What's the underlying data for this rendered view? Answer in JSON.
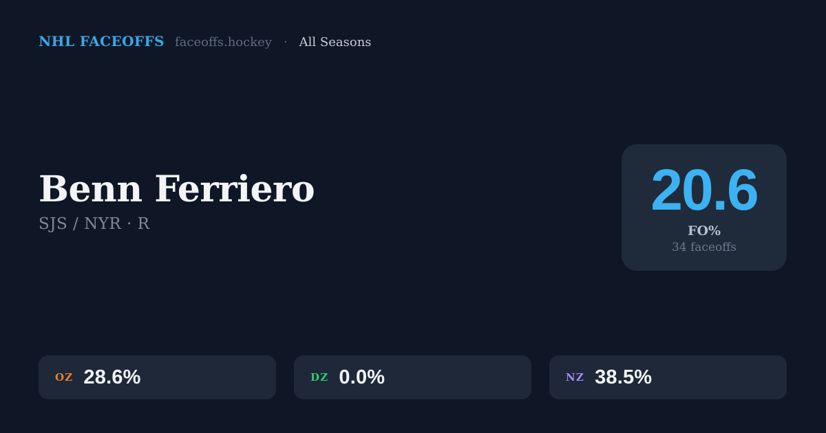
{
  "header": {
    "brand": "NHL FACEOFFS",
    "site": "faceoffs.hockey",
    "separator": "·",
    "season_filter": "All Seasons"
  },
  "player": {
    "name": "Benn Ferriero",
    "meta": "SJS / NYR · R"
  },
  "faceoff_card": {
    "percentage": "20.6",
    "stat_label": "FO%",
    "sample_size": "34 faceoffs"
  },
  "zone_stats": [
    {
      "zone": "OZ",
      "win_pct": "28.6%",
      "color": "#e8802e"
    },
    {
      "zone": "DZ",
      "win_pct": "0.0%",
      "color": "#2ecc71"
    },
    {
      "zone": "NZ",
      "win_pct": "38.5%",
      "color": "#a78bfa"
    }
  ],
  "colors": {
    "background": "#0f1726",
    "panel": "#1f2a3a",
    "pill": "#1e2838",
    "brand_blue": "#3aa7e6",
    "accent_blue": "#3cb2f2"
  }
}
